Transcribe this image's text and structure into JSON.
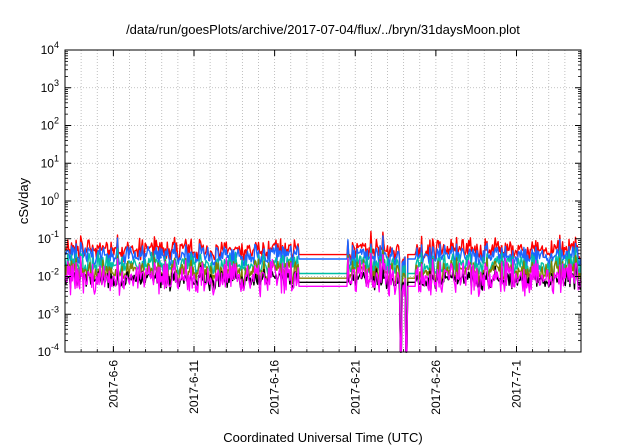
{
  "chart_data": {
    "type": "line",
    "title": "/data/run/goesPlots/archive/2017-07-04/flux/../bryn/31daysMoon.plot",
    "xlabel": "Coordinated Universal Time (UTC)",
    "ylabel": "cSv/day",
    "y_scale": "log",
    "ylim": [
      0.0001,
      10000
    ],
    "xlim": [
      "2017-06-03",
      "2017-07-05"
    ],
    "grid": true,
    "y_ticks": [
      {
        "value": 0.0001,
        "base": "10",
        "exp": "-4"
      },
      {
        "value": 0.001,
        "base": "10",
        "exp": "-3"
      },
      {
        "value": 0.01,
        "base": "10",
        "exp": "-2"
      },
      {
        "value": 0.1,
        "base": "10",
        "exp": "-1"
      },
      {
        "value": 1,
        "base": "10",
        "exp": "0"
      },
      {
        "value": 10,
        "base": "10",
        "exp": "1"
      },
      {
        "value": 100,
        "base": "10",
        "exp": "2"
      },
      {
        "value": 1000,
        "base": "10",
        "exp": "3"
      },
      {
        "value": 10000,
        "base": "10",
        "exp": "4"
      }
    ],
    "x_ticks": [
      {
        "date": "2017-06-06",
        "label": "2017-6-6"
      },
      {
        "date": "2017-06-11",
        "label": "2017-6-11"
      },
      {
        "date": "2017-06-16",
        "label": "2017-6-16"
      },
      {
        "date": "2017-06-21",
        "label": "2017-6-21"
      },
      {
        "date": "2017-06-26",
        "label": "2017-6-26"
      },
      {
        "date": "2017-07-01",
        "label": "2017-7-1"
      }
    ],
    "x_grid_dates": [
      "2017-06-04",
      "2017-06-05",
      "2017-06-06",
      "2017-06-07",
      "2017-06-08",
      "2017-06-09",
      "2017-06-10",
      "2017-06-11",
      "2017-06-12",
      "2017-06-13",
      "2017-06-14",
      "2017-06-15",
      "2017-06-16",
      "2017-06-17",
      "2017-06-18",
      "2017-06-19",
      "2017-06-20",
      "2017-06-21",
      "2017-06-22",
      "2017-06-23",
      "2017-06-24",
      "2017-06-25",
      "2017-06-26",
      "2017-06-27",
      "2017-06-28",
      "2017-06-29",
      "2017-06-30",
      "2017-07-01",
      "2017-07-02",
      "2017-07-03",
      "2017-07-04"
    ],
    "flat_segments": [
      {
        "start": "2017-06-17T12:00",
        "end": "2017-06-20T12:00"
      },
      {
        "start": "2017-06-24T06:00",
        "end": "2017-06-24T18:00"
      }
    ],
    "dropouts": [
      {
        "date": "2017-06-23T20:00",
        "min": 0.0001
      },
      {
        "date": "2017-06-24T04:00",
        "min": 0.0001
      }
    ],
    "series": [
      {
        "color": "#ff0000",
        "base": 0.05,
        "spread": 0.35,
        "flat": 0.038
      },
      {
        "color": "#1a66ff",
        "base": 0.035,
        "spread": 0.35,
        "flat": 0.029
      },
      {
        "color": "#00bfa5",
        "base": 0.02,
        "spread": 0.35,
        "flat": 0.012
      },
      {
        "color": "#808000",
        "base": 0.013,
        "spread": 0.4,
        "flat": 0.009
      },
      {
        "color": "#000000",
        "base": 0.008,
        "spread": 0.3,
        "flat": 0.007
      },
      {
        "color": "#ff00ff",
        "base": 0.009,
        "spread": 0.55,
        "flat": 0.0055
      }
    ]
  }
}
